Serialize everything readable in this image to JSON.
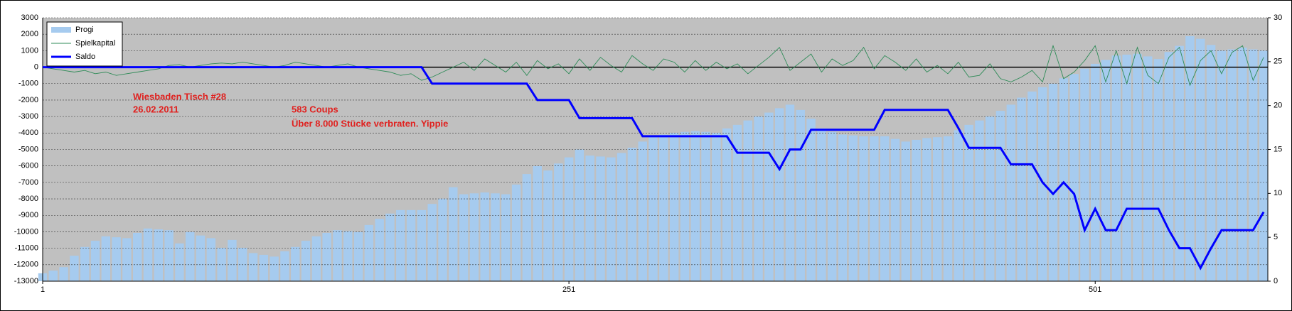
{
  "chart_data": {
    "type": "combo",
    "x": [
      1,
      6,
      11,
      16,
      21,
      26,
      31,
      36,
      41,
      46,
      51,
      56,
      61,
      66,
      71,
      76,
      81,
      86,
      91,
      96,
      101,
      106,
      111,
      116,
      121,
      126,
      131,
      136,
      141,
      146,
      151,
      156,
      161,
      166,
      171,
      176,
      181,
      186,
      191,
      196,
      201,
      206,
      211,
      216,
      221,
      226,
      231,
      236,
      241,
      246,
      251,
      256,
      261,
      266,
      271,
      276,
      281,
      286,
      291,
      296,
      301,
      306,
      311,
      316,
      321,
      326,
      331,
      336,
      341,
      346,
      351,
      356,
      361,
      366,
      371,
      376,
      381,
      386,
      391,
      396,
      401,
      406,
      411,
      416,
      421,
      426,
      431,
      436,
      441,
      446,
      451,
      456,
      461,
      466,
      471,
      476,
      481,
      486,
      491,
      496,
      501,
      506,
      511,
      516,
      521,
      526,
      531,
      536,
      541,
      546,
      551,
      556,
      561,
      566,
      571,
      576,
      581
    ],
    "xlim": [
      1,
      583
    ],
    "xticks": [
      1,
      251,
      501
    ],
    "ylim": [
      -13000,
      3000
    ],
    "yticks": [
      -13000,
      -12000,
      -11000,
      -10000,
      -9000,
      -8000,
      -7000,
      -6000,
      -5000,
      -4000,
      -3000,
      -2000,
      -1000,
      0,
      1000,
      2000,
      3000
    ],
    "y2lim": [
      0,
      30
    ],
    "y2ticks": [
      0,
      5,
      10,
      15,
      20,
      25,
      30
    ],
    "grid": true,
    "legend": "top-left",
    "annotations": [
      "Wiesbaden Tisch #28",
      "26.02.2011",
      "583 Coups",
      "Über 8.000 Stücke verbraten. Yippie"
    ],
    "series": [
      {
        "name": "Progi",
        "kind": "bar",
        "axis": "y2",
        "color": "#a6cbef",
        "values": [
          0.9,
          1.2,
          1.6,
          2.9,
          3.9,
          4.6,
          5.1,
          5.0,
          4.9,
          5.5,
          6.0,
          5.9,
          5.8,
          4.3,
          5.6,
          5.2,
          4.9,
          3.8,
          4.7,
          3.8,
          3.2,
          3.0,
          2.8,
          3.4,
          3.9,
          4.6,
          5.1,
          5.5,
          5.8,
          5.7,
          5.6,
          6.4,
          7.1,
          7.7,
          8.1,
          8.1,
          8.1,
          8.8,
          9.4,
          10.7,
          9.9,
          10.0,
          10.1,
          10.0,
          9.9,
          11.0,
          12.2,
          13.1,
          12.6,
          13.4,
          14.1,
          15.0,
          14.3,
          14.2,
          14.1,
          14.6,
          15.2,
          15.9,
          16.5,
          16.7,
          16.9,
          17.0,
          17.1,
          17.0,
          16.9,
          17.4,
          17.8,
          18.3,
          18.75,
          19.2,
          19.7,
          20.1,
          19.5,
          18.5,
          17.4,
          17.0,
          16.7,
          16.6,
          16.5,
          16.5,
          16.5,
          16.2,
          15.9,
          16.1,
          16.3,
          16.4,
          16.5,
          17.2,
          17.8,
          18.3,
          18.75,
          19.4,
          20.1,
          20.9,
          21.6,
          22.1,
          22.5,
          23.1,
          23.6,
          24.2,
          24.75,
          25.2,
          25.7,
          25.8,
          25.9,
          25.6,
          25.3,
          26.1,
          26.8,
          27.9,
          27.6,
          26.9,
          26.25,
          26.4,
          26.6,
          26.4,
          26.25
        ]
      },
      {
        "name": "Spielkapital",
        "kind": "line",
        "color": "#2e8b57",
        "values": [
          0,
          -100,
          -200,
          -300,
          -200,
          -400,
          -300,
          -500,
          -400,
          -300,
          -200,
          -100,
          100,
          150,
          0,
          100,
          200,
          250,
          200,
          300,
          200,
          100,
          0,
          100,
          300,
          200,
          100,
          0,
          100,
          200,
          0,
          -100,
          -200,
          -300,
          -500,
          -400,
          -800,
          -600,
          -300,
          0,
          300,
          -200,
          500,
          100,
          -300,
          300,
          -500,
          400,
          -100,
          200,
          -400,
          500,
          -200,
          600,
          100,
          -300,
          700,
          200,
          -200,
          500,
          300,
          -300,
          400,
          -200,
          300,
          -100,
          200,
          -400,
          100,
          600,
          1200,
          -200,
          300,
          800,
          -300,
          500,
          100,
          400,
          1200,
          -100,
          700,
          300,
          -200,
          500,
          -300,
          100,
          -400,
          300,
          -600,
          -500,
          200,
          -700,
          -900,
          -600,
          -200,
          -900,
          1300,
          -700,
          -300,
          400,
          1300,
          -900,
          1000,
          -1000,
          1200,
          -500,
          -1000,
          600,
          1200,
          -1100,
          400,
          1000,
          -400,
          900,
          1300,
          -800,
          600
        ]
      },
      {
        "name": "Saldo",
        "kind": "line",
        "color": "#0000ff",
        "values": [
          0,
          0,
          0,
          0,
          0,
          0,
          0,
          0,
          0,
          0,
          0,
          0,
          0,
          0,
          0,
          0,
          0,
          0,
          0,
          0,
          0,
          0,
          0,
          0,
          0,
          0,
          0,
          0,
          0,
          0,
          0,
          0,
          0,
          0,
          0,
          0,
          0,
          -1000,
          -1000,
          -1000,
          -1000,
          -1000,
          -1000,
          -1000,
          -1000,
          -1000,
          -1000,
          -2000,
          -2000,
          -2000,
          -2000,
          -3100,
          -3100,
          -3100,
          -3100,
          -3100,
          -3100,
          -4200,
          -4200,
          -4200,
          -4200,
          -4200,
          -4200,
          -4200,
          -4200,
          -4200,
          -5200,
          -5200,
          -5200,
          -5200,
          -6200,
          -5000,
          -5000,
          -3800,
          -3800,
          -3800,
          -3800,
          -3800,
          -3800,
          -3800,
          -2600,
          -2600,
          -2600,
          -2600,
          -2600,
          -2600,
          -2600,
          -3700,
          -4900,
          -4900,
          -4900,
          -4900,
          -5900,
          -5900,
          -5900,
          -7000,
          -7700,
          -7000,
          -7700,
          -9900,
          -8600,
          -9900,
          -9900,
          -8600,
          -8600,
          -8600,
          -8600,
          -9900,
          -11000,
          -11000,
          -12200,
          -11000,
          -9900,
          -9900,
          -9900,
          -9900,
          -8800
        ]
      }
    ]
  }
}
